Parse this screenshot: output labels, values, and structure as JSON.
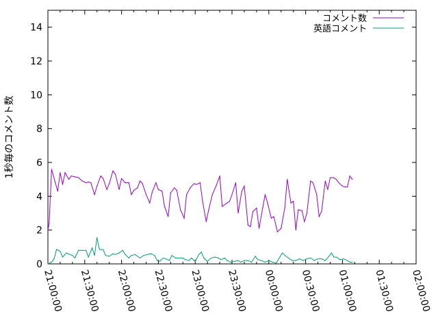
{
  "chart_data": {
    "type": "line",
    "ylabel": "1秒毎のコメント数",
    "xlabel": "",
    "title": "",
    "ylim": [
      0,
      15
    ],
    "yticks": [
      0,
      2,
      4,
      6,
      8,
      10,
      12,
      14
    ],
    "xticks": [
      "21:00:00",
      "21:30:00",
      "22:00:00",
      "22:30:00",
      "23:00:00",
      "23:30:00",
      "00:00:00",
      "00:30:00",
      "01:00:00",
      "01:30:00",
      "02:00:00"
    ],
    "x_range_minutes": [
      0,
      300
    ],
    "grid": false,
    "legend_position": "top-right",
    "series": [
      {
        "name": "コメント数",
        "color": "#9400d3",
        "points": [
          [
            0,
            2.0
          ],
          [
            1,
            2.4
          ],
          [
            3,
            5.6
          ],
          [
            6,
            4.8
          ],
          [
            8,
            4.3
          ],
          [
            10,
            5.4
          ],
          [
            12,
            4.7
          ],
          [
            14,
            5.4
          ],
          [
            17,
            5.0
          ],
          [
            19,
            5.2
          ],
          [
            22,
            5.15
          ],
          [
            25,
            5.1
          ],
          [
            28,
            4.9
          ],
          [
            31,
            4.8
          ],
          [
            33,
            4.85
          ],
          [
            35,
            4.8
          ],
          [
            38,
            4.1
          ],
          [
            40,
            4.6
          ],
          [
            43,
            5.2
          ],
          [
            45,
            5.05
          ],
          [
            48,
            4.4
          ],
          [
            50,
            4.75
          ],
          [
            53,
            5.5
          ],
          [
            55,
            5.3
          ],
          [
            58,
            4.4
          ],
          [
            60,
            5.05
          ],
          [
            63,
            4.8
          ],
          [
            66,
            4.8
          ],
          [
            68,
            4.1
          ],
          [
            70,
            4.35
          ],
          [
            73,
            4.5
          ],
          [
            75,
            4.9
          ],
          [
            77,
            4.75
          ],
          [
            80,
            4.1
          ],
          [
            83,
            3.6
          ],
          [
            85,
            4.25
          ],
          [
            88,
            4.8
          ],
          [
            90,
            4.4
          ],
          [
            93,
            4.3
          ],
          [
            95,
            3.4
          ],
          [
            98,
            2.8
          ],
          [
            100,
            4.2
          ],
          [
            103,
            4.5
          ],
          [
            105,
            4.35
          ],
          [
            108,
            3.2
          ],
          [
            111,
            2.7
          ],
          [
            113,
            4.1
          ],
          [
            116,
            4.5
          ],
          [
            119,
            4.75
          ],
          [
            121,
            4.7
          ],
          [
            124,
            4.8
          ],
          [
            126,
            3.7
          ],
          [
            129,
            2.5
          ],
          [
            131,
            3.2
          ],
          [
            134,
            4.1
          ],
          [
            137,
            4.6
          ],
          [
            140,
            5.2
          ],
          [
            142,
            3.4
          ],
          [
            145,
            3.55
          ],
          [
            148,
            3.7
          ],
          [
            150,
            4.1
          ],
          [
            153,
            4.8
          ],
          [
            155,
            3.0
          ],
          [
            158,
            4.3
          ],
          [
            160,
            4.6
          ],
          [
            163,
            2.3
          ],
          [
            165,
            2.2
          ],
          [
            167,
            3.1
          ],
          [
            170,
            3.3
          ],
          [
            172,
            2.1
          ],
          [
            175,
            3.3
          ],
          [
            177,
            4.1
          ],
          [
            179,
            3.6
          ],
          [
            182,
            2.7
          ],
          [
            184,
            2.8
          ],
          [
            187,
            1.9
          ],
          [
            190,
            2.1
          ],
          [
            193,
            3.3
          ],
          [
            195,
            5.0
          ],
          [
            198,
            3.6
          ],
          [
            200,
            3.7
          ],
          [
            202,
            2.0
          ],
          [
            204,
            3.2
          ],
          [
            207,
            3.15
          ],
          [
            209,
            2.5
          ],
          [
            211,
            3.0
          ],
          [
            214,
            4.9
          ],
          [
            216,
            4.8
          ],
          [
            219,
            4.1
          ],
          [
            221,
            2.8
          ],
          [
            223,
            3.1
          ],
          [
            226,
            4.9
          ],
          [
            228,
            4.4
          ],
          [
            230,
            5.1
          ],
          [
            233,
            5.1
          ],
          [
            235,
            5.0
          ],
          [
            237,
            4.8
          ],
          [
            240,
            4.6
          ],
          [
            242,
            4.55
          ],
          [
            244,
            4.55
          ],
          [
            246,
            5.2
          ],
          [
            248,
            5.0
          ]
        ]
      },
      {
        "name": "英語コメント",
        "color": "#009e73",
        "points": [
          [
            0,
            0.0
          ],
          [
            3,
            0.1
          ],
          [
            5,
            0.3
          ],
          [
            7,
            0.85
          ],
          [
            10,
            0.75
          ],
          [
            12,
            0.4
          ],
          [
            15,
            0.65
          ],
          [
            18,
            0.55
          ],
          [
            20,
            0.5
          ],
          [
            22,
            0.35
          ],
          [
            25,
            0.8
          ],
          [
            28,
            0.8
          ],
          [
            31,
            0.8
          ],
          [
            33,
            0.4
          ],
          [
            36,
            0.95
          ],
          [
            38,
            0.5
          ],
          [
            40,
            1.55
          ],
          [
            42,
            0.85
          ],
          [
            45,
            0.85
          ],
          [
            47,
            0.5
          ],
          [
            50,
            0.45
          ],
          [
            53,
            0.6
          ],
          [
            55,
            0.55
          ],
          [
            58,
            0.65
          ],
          [
            61,
            0.8
          ],
          [
            63,
            0.55
          ],
          [
            66,
            0.35
          ],
          [
            68,
            0.5
          ],
          [
            71,
            0.55
          ],
          [
            73,
            0.45
          ],
          [
            75,
            0.35
          ],
          [
            78,
            0.5
          ],
          [
            81,
            0.55
          ],
          [
            84,
            0.6
          ],
          [
            87,
            0.5
          ],
          [
            89,
            0.2
          ],
          [
            91,
            0.15
          ],
          [
            94,
            0.35
          ],
          [
            96,
            0.3
          ],
          [
            99,
            0.2
          ],
          [
            101,
            0.5
          ],
          [
            104,
            0.35
          ],
          [
            107,
            0.35
          ],
          [
            110,
            0.35
          ],
          [
            112,
            0.25
          ],
          [
            115,
            0.2
          ],
          [
            117,
            0.35
          ],
          [
            120,
            0.15
          ],
          [
            123,
            0.55
          ],
          [
            125,
            0.7
          ],
          [
            127,
            0.35
          ],
          [
            130,
            0.15
          ],
          [
            133,
            0.35
          ],
          [
            136,
            0.4
          ],
          [
            139,
            0.35
          ],
          [
            141,
            0.25
          ],
          [
            144,
            0.35
          ],
          [
            146,
            0.2
          ],
          [
            149,
            0.1
          ],
          [
            152,
            0.15
          ],
          [
            155,
            0.2
          ],
          [
            157,
            0.1
          ],
          [
            160,
            0.2
          ],
          [
            163,
            0.2
          ],
          [
            166,
            0.1
          ],
          [
            169,
            0.45
          ],
          [
            171,
            0.25
          ],
          [
            174,
            0.2
          ],
          [
            177,
            0.1
          ],
          [
            180,
            0.2
          ],
          [
            183,
            0.1
          ],
          [
            186,
            0.05
          ],
          [
            189,
            0.4
          ],
          [
            191,
            0.65
          ],
          [
            194,
            0.45
          ],
          [
            197,
            0.3
          ],
          [
            199,
            0.2
          ],
          [
            202,
            0.2
          ],
          [
            205,
            0.3
          ],
          [
            208,
            0.2
          ],
          [
            211,
            0.3
          ],
          [
            214,
            0.35
          ],
          [
            217,
            0.2
          ],
          [
            220,
            0.3
          ],
          [
            223,
            0.3
          ],
          [
            226,
            0.2
          ],
          [
            229,
            0.45
          ],
          [
            231,
            0.65
          ],
          [
            233,
            0.4
          ],
          [
            235,
            0.4
          ],
          [
            238,
            0.25
          ],
          [
            241,
            0.3
          ],
          [
            244,
            0.2
          ],
          [
            246,
            0.1
          ],
          [
            248,
            0.1
          ]
        ]
      }
    ]
  }
}
